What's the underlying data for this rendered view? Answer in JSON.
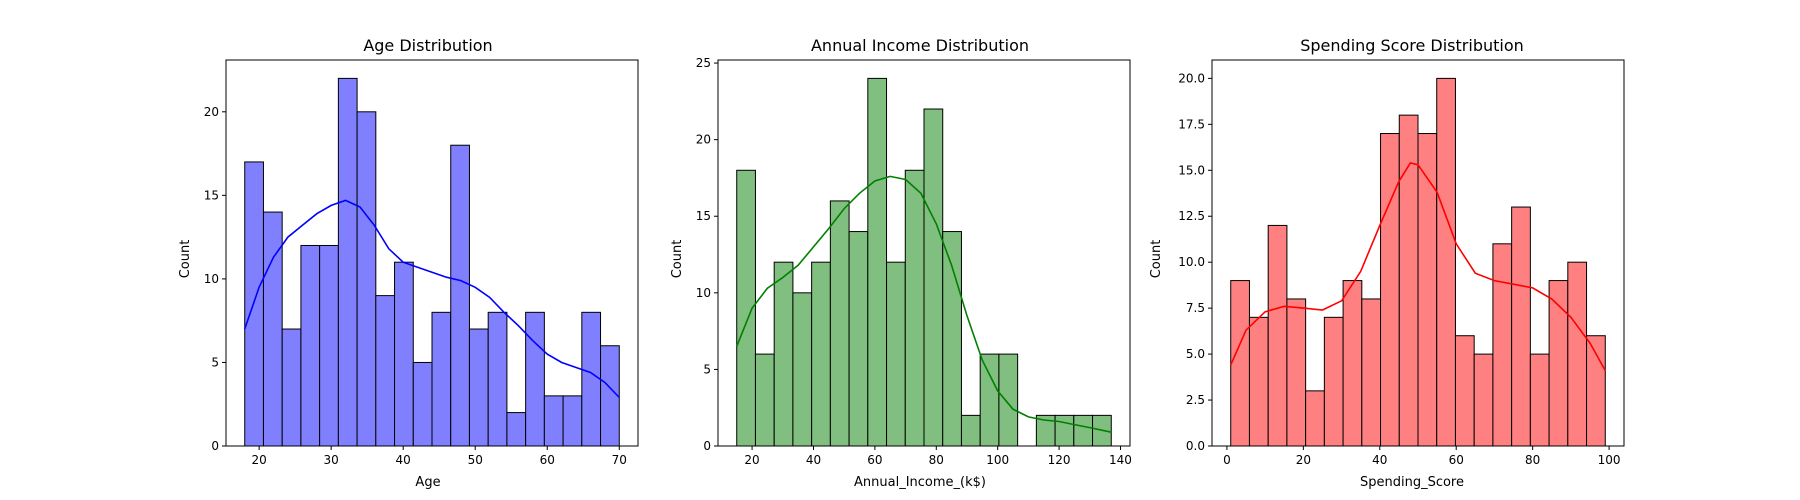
{
  "chart_data": [
    {
      "type": "bar",
      "title": "Age Distribution",
      "xlabel": "Age",
      "ylabel": "Count",
      "bar_color": "#8080ff",
      "kde_color": "#0000ff",
      "bin_start": 18,
      "bin_width": 2.6,
      "values": [
        17,
        14,
        7,
        12,
        12,
        22,
        20,
        9,
        11,
        5,
        8,
        18,
        7,
        8,
        2,
        8,
        3,
        3,
        8,
        6
      ],
      "kde": [
        [
          18,
          7.0
        ],
        [
          20,
          9.5
        ],
        [
          22,
          11.3
        ],
        [
          24,
          12.5
        ],
        [
          26,
          13.2
        ],
        [
          28,
          13.9
        ],
        [
          30,
          14.4
        ],
        [
          32,
          14.7
        ],
        [
          34,
          14.3
        ],
        [
          36,
          13.2
        ],
        [
          38,
          11.8
        ],
        [
          40,
          11.0
        ],
        [
          42,
          10.7
        ],
        [
          44,
          10.4
        ],
        [
          46,
          10.1
        ],
        [
          48,
          9.9
        ],
        [
          50,
          9.5
        ],
        [
          52,
          8.9
        ],
        [
          54,
          8.0
        ],
        [
          56,
          7.2
        ],
        [
          58,
          6.3
        ],
        [
          60,
          5.5
        ],
        [
          62,
          5.0
        ],
        [
          64,
          4.7
        ],
        [
          66,
          4.4
        ],
        [
          68,
          3.8
        ],
        [
          70,
          2.9
        ]
      ],
      "xlim": [
        15.4,
        72.6
      ],
      "ylim": [
        0,
        23.1
      ],
      "xticks": [
        20,
        30,
        40,
        50,
        60,
        70
      ],
      "yticks": [
        0,
        5,
        10,
        15,
        20
      ],
      "ytick_labels": [
        "0",
        "5",
        "10",
        "15",
        "20"
      ]
    },
    {
      "type": "bar",
      "title": "Annual Income Distribution",
      "xlabel": "Annual_Income_(k$)",
      "ylabel": "Count",
      "bar_color": "#80bf80",
      "kde_color": "#008000",
      "bin_start": 15,
      "bin_width": 6.1,
      "values": [
        18,
        6,
        12,
        10,
        12,
        16,
        14,
        24,
        12,
        18,
        22,
        14,
        2,
        6,
        6,
        0,
        2,
        2,
        2,
        2
      ],
      "kde": [
        [
          15,
          6.5
        ],
        [
          20,
          9.0
        ],
        [
          25,
          10.3
        ],
        [
          30,
          11.0
        ],
        [
          35,
          11.8
        ],
        [
          40,
          13.0
        ],
        [
          45,
          14.2
        ],
        [
          50,
          15.5
        ],
        [
          55,
          16.5
        ],
        [
          60,
          17.3
        ],
        [
          65,
          17.6
        ],
        [
          70,
          17.4
        ],
        [
          75,
          16.5
        ],
        [
          80,
          14.5
        ],
        [
          85,
          11.8
        ],
        [
          90,
          8.5
        ],
        [
          95,
          5.6
        ],
        [
          100,
          3.6
        ],
        [
          105,
          2.4
        ],
        [
          110,
          1.9
        ],
        [
          115,
          1.7
        ],
        [
          120,
          1.6
        ],
        [
          125,
          1.4
        ],
        [
          130,
          1.2
        ],
        [
          137,
          0.9
        ]
      ],
      "xlim": [
        8.9,
        143.1
      ],
      "ylim": [
        0,
        25.2
      ],
      "xticks": [
        20,
        40,
        60,
        80,
        100,
        120,
        140
      ],
      "yticks": [
        0,
        5,
        10,
        15,
        20,
        25
      ],
      "ytick_labels": [
        "0",
        "5",
        "10",
        "15",
        "20",
        "25"
      ]
    },
    {
      "type": "bar",
      "title": "Spending Score Distribution",
      "xlabel": "Spending_Score",
      "ylabel": "Count",
      "bar_color": "#ff8080",
      "kde_color": "#ff0000",
      "bin_start": 1,
      "bin_width": 4.9,
      "values": [
        9,
        7,
        12,
        8,
        3,
        7,
        9,
        8,
        17,
        18,
        17,
        20,
        6,
        5,
        11,
        13,
        5,
        9,
        10,
        6
      ],
      "kde": [
        [
          1,
          4.4
        ],
        [
          5,
          6.3
        ],
        [
          10,
          7.3
        ],
        [
          15,
          7.6
        ],
        [
          20,
          7.5
        ],
        [
          25,
          7.4
        ],
        [
          30,
          7.9
        ],
        [
          35,
          9.5
        ],
        [
          40,
          12.0
        ],
        [
          45,
          14.4
        ],
        [
          48,
          15.4
        ],
        [
          50,
          15.3
        ],
        [
          55,
          13.8
        ],
        [
          60,
          11.0
        ],
        [
          65,
          9.4
        ],
        [
          70,
          9.0
        ],
        [
          75,
          8.8
        ],
        [
          80,
          8.6
        ],
        [
          85,
          8.0
        ],
        [
          90,
          7.0
        ],
        [
          95,
          5.6
        ],
        [
          99,
          4.1
        ]
      ],
      "xlim": [
        -3.9,
        103.9
      ],
      "ylim": [
        0,
        21
      ],
      "xticks": [
        0,
        20,
        40,
        60,
        80,
        100
      ],
      "yticks": [
        0,
        2.5,
        5,
        7.5,
        10,
        12.5,
        15,
        17.5,
        20
      ],
      "ytick_labels": [
        "0.0",
        "2.5",
        "5.0",
        "7.5",
        "10.0",
        "12.5",
        "15.0",
        "17.5",
        "20.0"
      ]
    }
  ]
}
